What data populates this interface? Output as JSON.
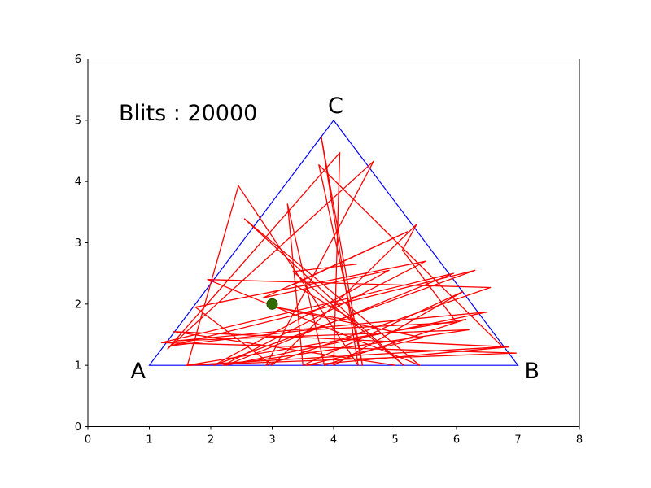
{
  "chart_data": {
    "type": "line",
    "xlim": [
      0,
      8
    ],
    "ylim": [
      0,
      6
    ],
    "xticks": [
      "0",
      "1",
      "2",
      "3",
      "4",
      "5",
      "6",
      "7",
      "8"
    ],
    "yticks": [
      "0",
      "1",
      "2",
      "3",
      "4",
      "5",
      "6"
    ],
    "grid": false,
    "annotation": "Blits : 20000",
    "triangle": {
      "color": "#0000ff",
      "vertices": [
        {
          "label": "A",
          "x": 1,
          "y": 1
        },
        {
          "label": "B",
          "x": 7,
          "y": 1
        },
        {
          "label": "C",
          "x": 4,
          "y": 5
        }
      ]
    },
    "trajectory": {
      "color": "#ff0000",
      "x": [
        4.37,
        3.34,
        5.14,
        2.55,
        5.4,
        1.95,
        6.55,
        2.9,
        4.65,
        1.3,
        4.1,
        4.0,
        6.1,
        3.5,
        3.25,
        3.85,
        6.15,
        1.62,
        2.45,
        4.4,
        3.8,
        4.47,
        3.76,
        6.75,
        1.6,
        6.97,
        1.2,
        5.95,
        2.25,
        6.5,
        1.45,
        6.2,
        2.2,
        5.5,
        1.75,
        3.0,
        5.35,
        5.12,
        6.0,
        3.6,
        1.35,
        6.3,
        2.05,
        4.9,
        2.85,
        5.2,
        3.35,
        4.35,
        3.05,
        5.45,
        3.55,
        6.85,
        1.4,
        5.0
      ],
      "y": [
        2.65,
        2.53,
        1.0,
        3.39,
        1.0,
        2.4,
        2.27,
        1.0,
        4.33,
        1.27,
        4.47,
        1.0,
        2.2,
        1.0,
        3.63,
        1.0,
        1.75,
        1.0,
        3.93,
        1.0,
        4.72,
        1.0,
        4.27,
        1.3,
        1.0,
        1.2,
        1.37,
        2.5,
        1.0,
        1.87,
        1.4,
        1.58,
        1.0,
        2.7,
        1.95,
        1.0,
        3.3,
        2.88,
        1.7,
        1.58,
        1.32,
        2.55,
        1.0,
        2.55,
        2.1,
        3.18,
        2.32,
        1.72,
        1.95,
        1.45,
        1.0,
        1.3,
        1.55,
        1.0
      ]
    },
    "marker": {
      "x": 3.0,
      "y": 2.0,
      "color": "#2e6b00"
    }
  }
}
